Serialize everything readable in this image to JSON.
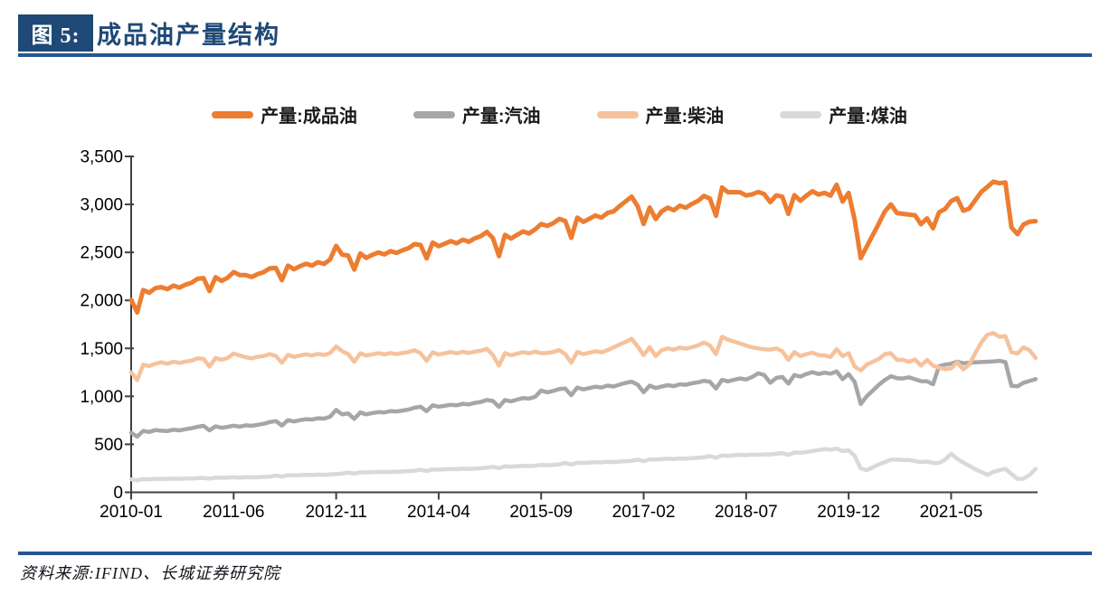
{
  "header": {
    "figure_label": "图 5:",
    "title": "成品油产量结构"
  },
  "footer": {
    "source": "资料来源:IFIND、长城证券研究院"
  },
  "colors": {
    "navy_accent": "#1F4976",
    "rule_blue": "#265692",
    "axis": "#404040",
    "tick_text": "#000000"
  },
  "chart_data": {
    "type": "line",
    "title": "成品油产量结构",
    "grid": false,
    "legend_position": "top",
    "x_start": "2010-01",
    "x_end": "2022-07",
    "x_tick_interval_months": 17,
    "x_tick_labels": [
      "2010-01",
      "2011-06",
      "2012-11",
      "2014-04",
      "2015-09",
      "2017-02",
      "2018-07",
      "2019-12",
      "2021-05"
    ],
    "ylim": [
      0,
      3500
    ],
    "y_tick_step": 500,
    "y_tick_labels": [
      "0",
      "500",
      "1,000",
      "1,500",
      "2,000",
      "2,500",
      "3,000",
      "3,500"
    ],
    "series": [
      {
        "name": "产量:成品油",
        "color": "#ED7D31",
        "values": [
          2005,
          1875,
          2108,
          2079,
          2127,
          2138,
          2117,
          2154,
          2133,
          2163,
          2184,
          2224,
          2232,
          2097,
          2241,
          2203,
          2236,
          2295,
          2263,
          2263,
          2243,
          2274,
          2294,
          2335,
          2337,
          2210,
          2362,
          2324,
          2356,
          2382,
          2363,
          2398,
          2380,
          2426,
          2568,
          2476,
          2467,
          2320,
          2488,
          2443,
          2474,
          2499,
          2479,
          2513,
          2495,
          2521,
          2544,
          2586,
          2577,
          2437,
          2602,
          2564,
          2590,
          2617,
          2595,
          2632,
          2611,
          2646,
          2669,
          2713,
          2648,
          2462,
          2682,
          2644,
          2682,
          2718,
          2697,
          2740,
          2795,
          2776,
          2804,
          2849,
          2827,
          2652,
          2862,
          2818,
          2851,
          2885,
          2862,
          2910,
          2927,
          2982,
          3031,
          3081,
          2982,
          2796,
          2968,
          2847,
          2928,
          2966,
          2939,
          2987,
          2966,
          3004,
          3036,
          3088,
          3060,
          2882,
          3176,
          3126,
          3128,
          3126,
          3093,
          3105,
          3130,
          3108,
          3023,
          3094,
          3080,
          2902,
          3097,
          3038,
          3092,
          3137,
          3102,
          3120,
          3091,
          3205,
          3030,
          3120,
          2840,
          2440,
          2560,
          2680,
          2800,
          2925,
          3000,
          2910,
          2902,
          2893,
          2887,
          2793,
          2855,
          2751,
          2918,
          2953,
          3034,
          3066,
          2934,
          2956,
          3044,
          3131,
          3182,
          3237,
          3220,
          3230,
          2760,
          2690,
          2791,
          2820,
          2825
        ]
      },
      {
        "name": "产量:汽油",
        "color": "#A6A6A6",
        "values": [
          620,
          580,
          640,
          628,
          648,
          642,
          638,
          652,
          645,
          658,
          668,
          682,
          692,
          645,
          688,
          672,
          682,
          694,
          684,
          698,
          692,
          704,
          714,
          732,
          742,
          695,
          752,
          738,
          752,
          762,
          758,
          772,
          768,
          788,
          858,
          812,
          822,
          765,
          832,
          812,
          826,
          836,
          832,
          846,
          842,
          852,
          862,
          882,
          892,
          845,
          906,
          892,
          902,
          912,
          906,
          922,
          916,
          932,
          942,
          962,
          952,
          890,
          962,
          948,
          966,
          982,
          976,
          996,
          1060,
          1042,
          1056,
          1076,
          1082,
          1012,
          1092,
          1072,
          1086,
          1100,
          1092,
          1112,
          1102,
          1122,
          1140,
          1152,
          1122,
          1042,
          1112,
          1086,
          1102,
          1116,
          1106,
          1126,
          1120,
          1136,
          1146,
          1162,
          1152,
          1082,
          1172,
          1156,
          1172,
          1186,
          1176,
          1202,
          1240,
          1222,
          1141,
          1192,
          1202,
          1132,
          1222,
          1206,
          1232,
          1252,
          1232,
          1246,
          1236,
          1260,
          1180,
          1232,
          1150,
          920,
          1000,
          1060,
          1120,
          1170,
          1210,
          1190,
          1186,
          1198,
          1178,
          1158,
          1157,
          1126,
          1314,
          1330,
          1340,
          1361,
          1344,
          1350,
          1354,
          1358,
          1360,
          1364,
          1370,
          1358,
          1110,
          1104,
          1141,
          1160,
          1180
        ]
      },
      {
        "name": "产量:柴油",
        "color": "#F6C29C",
        "values": [
          1250,
          1170,
          1330,
          1315,
          1340,
          1355,
          1340,
          1360,
          1348,
          1362,
          1372,
          1395,
          1390,
          1310,
          1400,
          1380,
          1400,
          1445,
          1425,
          1408,
          1396,
          1412,
          1420,
          1440,
          1420,
          1350,
          1432,
          1410,
          1425,
          1438,
          1425,
          1442,
          1430,
          1452,
          1520,
          1470,
          1440,
          1360,
          1448,
          1425,
          1438,
          1450,
          1436,
          1452,
          1440,
          1452,
          1462,
          1480,
          1450,
          1370,
          1458,
          1436,
          1448,
          1462,
          1448,
          1464,
          1452,
          1466,
          1476,
          1495,
          1430,
          1320,
          1450,
          1428,
          1444,
          1460,
          1448,
          1466,
          1450,
          1452,
          1462,
          1482,
          1440,
          1350,
          1462,
          1440,
          1455,
          1470,
          1458,
          1480,
          1510,
          1540,
          1567,
          1600,
          1520,
          1430,
          1512,
          1420,
          1480,
          1500,
          1486,
          1508,
          1496,
          1512,
          1530,
          1560,
          1530,
          1440,
          1620,
          1590,
          1570,
          1550,
          1530,
          1510,
          1500,
          1490,
          1487,
          1500,
          1470,
          1380,
          1460,
          1420,
          1440,
          1455,
          1430,
          1425,
          1410,
          1490,
          1420,
          1450,
          1310,
          1270,
          1330,
          1360,
          1390,
          1440,
          1450,
          1380,
          1380,
          1360,
          1384,
          1320,
          1378,
          1320,
          1298,
          1283,
          1292,
          1355,
          1280,
          1330,
          1450,
          1560,
          1640,
          1660,
          1620,
          1627,
          1460,
          1446,
          1510,
          1480,
          1400
        ]
      },
      {
        "name": "产量:煤油",
        "color": "#D9D9D9",
        "values": [
          135,
          125,
          138,
          136,
          139,
          141,
          139,
          142,
          140,
          143,
          144,
          147,
          150,
          142,
          153,
          151,
          154,
          156,
          154,
          157,
          155,
          158,
          160,
          163,
          175,
          165,
          178,
          176,
          179,
          182,
          180,
          184,
          182,
          186,
          190,
          194,
          205,
          195,
          208,
          206,
          210,
          213,
          211,
          215,
          213,
          217,
          220,
          224,
          235,
          222,
          238,
          236,
          240,
          243,
          241,
          246,
          243,
          248,
          251,
          256,
          266,
          252,
          270,
          268,
          272,
          276,
          273,
          278,
          285,
          282,
          286,
          291,
          305,
          290,
          308,
          306,
          310,
          315,
          312,
          318,
          315,
          320,
          324,
          329,
          340,
          324,
          344,
          341,
          346,
          350,
          347,
          353,
          350,
          356,
          360,
          366,
          378,
          360,
          384,
          380,
          386,
          390,
          387,
          393,
          390,
          396,
          395,
          402,
          408,
          390,
          415,
          412,
          420,
          430,
          440,
          449,
          445,
          455,
          430,
          438,
          380,
          250,
          230,
          260,
          290,
          315,
          340,
          340,
          336,
          335,
          325,
          315,
          320,
          305,
          306,
          340,
          402,
          350,
          310,
          276,
          240,
          213,
          182,
          213,
          230,
          245,
          190,
          140,
          140,
          180,
          245
        ]
      }
    ]
  }
}
